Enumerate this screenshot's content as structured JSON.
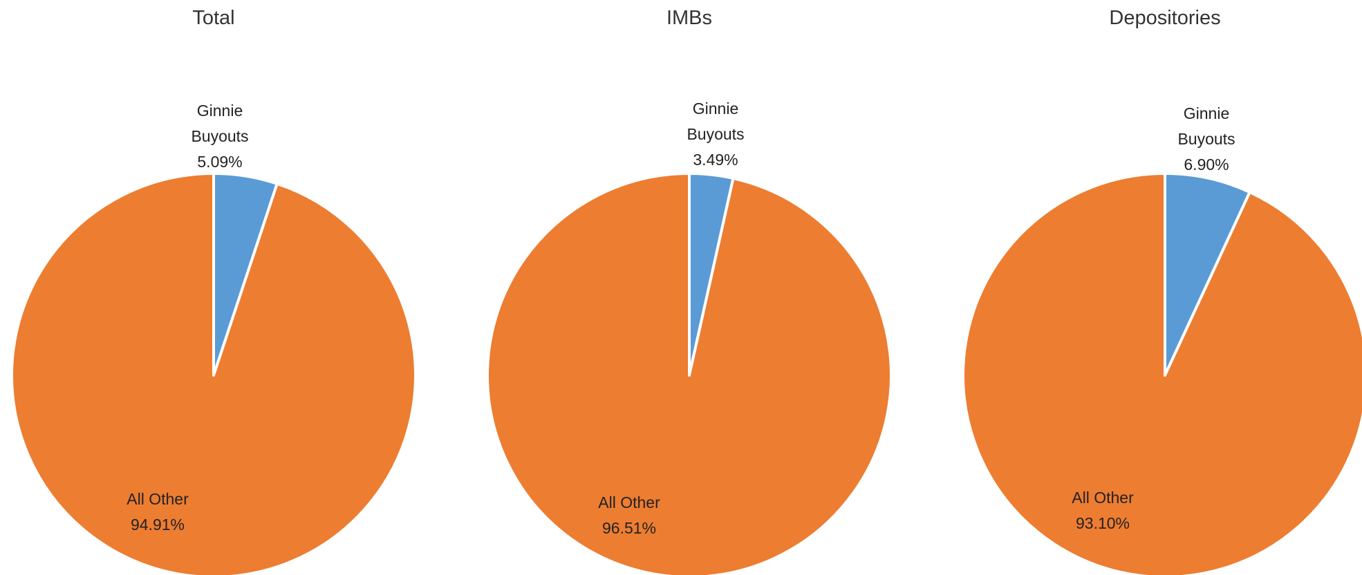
{
  "chart_data": [
    {
      "type": "pie",
      "title": "Total",
      "slices": [
        {
          "label": [
            "Ginnie",
            "Buyouts"
          ],
          "value": 5.09,
          "value_label": "5.09%",
          "color": "#5B9BD5"
        },
        {
          "label": [
            "All Other"
          ],
          "value": 94.91,
          "value_label": "94.91%",
          "color": "#ED7D31"
        }
      ],
      "start": "12 o'clock",
      "direction": "clockwise"
    },
    {
      "type": "pie",
      "title": "IMBs",
      "slices": [
        {
          "label": [
            "Ginnie",
            "Buyouts"
          ],
          "value": 3.49,
          "value_label": "3.49%",
          "color": "#5B9BD5"
        },
        {
          "label": [
            "All Other"
          ],
          "value": 96.51,
          "value_label": "96.51%",
          "color": "#ED7D31"
        }
      ],
      "start": "12 o'clock",
      "direction": "clockwise"
    },
    {
      "type": "pie",
      "title": "Depositories",
      "slices": [
        {
          "label": [
            "Ginnie",
            "Buyouts"
          ],
          "value": 6.9,
          "value_label": "6.90%",
          "color": "#5B9BD5"
        },
        {
          "label": [
            "All Other"
          ],
          "value": 93.1,
          "value_label": "93.10%",
          "color": "#ED7D31"
        }
      ],
      "start": "12 o'clock",
      "direction": "clockwise"
    }
  ],
  "colors": {
    "ginnie_buyouts": "#5B9BD5",
    "all_other": "#ED7D31",
    "slice_border": "#FFFFFF"
  }
}
